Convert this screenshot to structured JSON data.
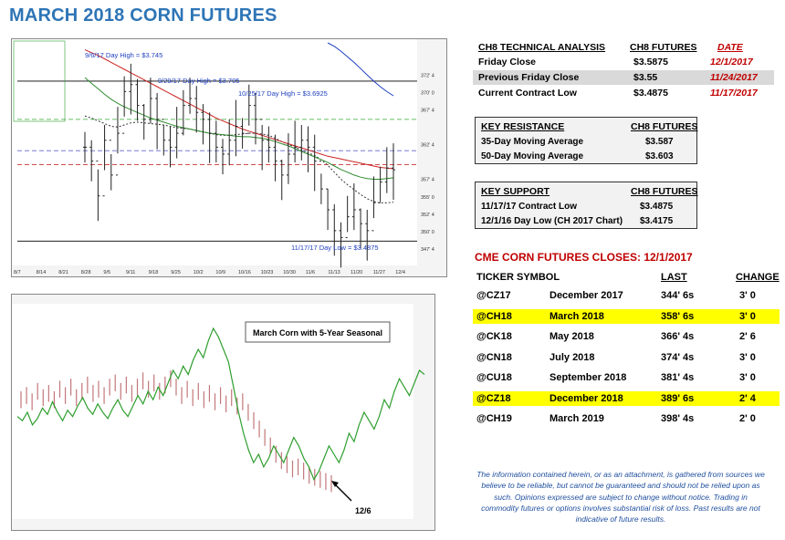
{
  "title": "MARCH 2018 CORN FUTURES",
  "technical": {
    "header": [
      "CH8 TECHNICAL ANALYSIS",
      "CH8 FUTURES",
      "DATE"
    ],
    "rows": [
      {
        "label": "Friday Close",
        "value": "$3.5875",
        "date": "12/1/2017"
      },
      {
        "label": "Previous Friday Close",
        "value": "$3.55",
        "date": "11/24/2017"
      },
      {
        "label": "Current Contract Low",
        "value": "$3.4875",
        "date": "11/17/2017"
      }
    ]
  },
  "resistance": {
    "header": [
      "KEY RESISTANCE",
      "CH8 FUTURES"
    ],
    "rows": [
      {
        "label": "35-Day Moving Average",
        "value": "$3.587"
      },
      {
        "label": "50-Day Moving Average",
        "value": "$3.603"
      }
    ]
  },
  "support": {
    "header": [
      "KEY SUPPORT",
      "CH8 FUTURES"
    ],
    "rows": [
      {
        "label": "11/17/17 Contract Low",
        "value": "$3.4875"
      },
      {
        "label": "12/1/16 Day Low (CH 2017 Chart)",
        "value": "$3.4175"
      }
    ]
  },
  "closes": {
    "title": "CME CORN FUTURES CLOSES:  12/1/2017",
    "header": [
      "TICKER SYMBOL",
      "LAST",
      "CHANGE"
    ],
    "rows": [
      {
        "ticker": "@CZ17",
        "month": "December 2017",
        "last": "344' 6s",
        "change": "3' 0",
        "highlight": false
      },
      {
        "ticker": "@CH18",
        "month": "March 2018",
        "last": "358' 6s",
        "change": "3' 0",
        "highlight": true
      },
      {
        "ticker": "@CK18",
        "month": "May 2018",
        "last": "366' 4s",
        "change": "2' 6",
        "highlight": false
      },
      {
        "ticker": "@CN18",
        "month": "July 2018",
        "last": "374' 4s",
        "change": "3' 0",
        "highlight": false
      },
      {
        "ticker": "@CU18",
        "month": "September 2018",
        "last": "381' 4s",
        "change": "3' 0",
        "highlight": false
      },
      {
        "ticker": "@CZ18",
        "month": "December 2018",
        "last": "389' 6s",
        "change": "2' 4",
        "highlight": true
      },
      {
        "ticker": "@CH19",
        "month": "March 2019",
        "last": "398' 4s",
        "change": "2' 0",
        "highlight": false
      }
    ]
  },
  "disclaimer": "The information contained herein, or as an attachment, is gathered from sources we believe to be reliable, but cannot be guaranteed and should not be relied upon as such. Opinions expressed are subject to change without notice. Trading in commodity futures or options involves substantial risk of loss. Past results are not indicative of future results.",
  "chart_data": [
    {
      "type": "candlestick",
      "annotations": [
        "9/6/17 Day High = $3.745",
        "9/29/17 Day High = $3.705",
        "10/25/17 Day High = $3.6925",
        "11/17/17 Day Low = $3.4875"
      ],
      "x_tick_labels": [
        "8/7",
        "8/14",
        "8/21",
        "8/28",
        "9/5",
        "9/11",
        "9/18",
        "9/25",
        "10/2",
        "10/9",
        "10/16",
        "10/23",
        "10/30",
        "11/6",
        "11/13",
        "11/20",
        "11/27",
        "12/4"
      ],
      "y_tick_labels": [
        "372' 4",
        "370' 0",
        "367' 4",
        "362' 4",
        "357' 4",
        "355' 0",
        "352' 4",
        "350' 0",
        "347' 4"
      ],
      "ylim": [
        345,
        377
      ],
      "series": [
        {
          "kind": "ohlc",
          "close": [
            362,
            360,
            355,
            363,
            358,
            364,
            370,
            371,
            368,
            366,
            369,
            366,
            363,
            362,
            364,
            368,
            369,
            367,
            366,
            364,
            362,
            361,
            363,
            365,
            364,
            368,
            366,
            363,
            362,
            360,
            358,
            361,
            362,
            363,
            362,
            360,
            356,
            353,
            350,
            349,
            352,
            353,
            351,
            350,
            354,
            357,
            359,
            358.75
          ],
          "color": "#222222"
        },
        {
          "kind": "ma_fast",
          "values": [
            366.5,
            366.2,
            365.8,
            365.4,
            365.0,
            364.9,
            365.2,
            365.5,
            365.6,
            365.5,
            365.4,
            365.3,
            365.2,
            365.0,
            364.8,
            364.7,
            364.6,
            364.4,
            364.2,
            364.0,
            363.8,
            363.7,
            363.7,
            363.8,
            363.9,
            364.0,
            364.0,
            363.9,
            363.7,
            363.3,
            362.8,
            362.4,
            362.0,
            361.6,
            361.2,
            360.8,
            360.2,
            359.4,
            358.4,
            357.4,
            356.6,
            355.9,
            355.2,
            354.6,
            354.2,
            354.0,
            354.0,
            354.1
          ],
          "color": "#333333"
        },
        {
          "kind": "ma_green",
          "values": [
            372,
            371.2,
            370.4,
            369.6,
            368.9,
            368.3,
            367.8,
            367.4,
            367.0,
            366.6,
            366.2,
            365.9,
            365.6,
            365.3,
            365.0,
            364.8,
            364.6,
            364.4,
            364.2,
            364.0,
            363.9,
            363.8,
            363.7,
            363.6,
            363.5,
            363.5,
            363.4,
            363.3,
            363.1,
            362.8,
            362.5,
            362.2,
            361.8,
            361.4,
            361.0,
            360.6,
            360.2,
            359.8,
            359.3,
            358.8,
            358.4,
            358.0,
            357.7,
            357.5,
            357.4,
            357.4,
            357.5,
            357.6
          ],
          "color": "#2e8b2e"
        },
        {
          "kind": "ma_red",
          "values": [
            376,
            375.6,
            375.2,
            374.7,
            374.2,
            373.7,
            373.2,
            372.7,
            372.2,
            371.7,
            371.2,
            370.7,
            370.2,
            369.7,
            369.2,
            368.7,
            368.2,
            367.7,
            367.2,
            366.7,
            366.2,
            365.8,
            365.4,
            365.0,
            364.6,
            364.3,
            364.0,
            363.7,
            363.4,
            363.1,
            362.8,
            362.5,
            362.2,
            361.9,
            361.6,
            361.3,
            361.0,
            360.7,
            360.5,
            360.3,
            360.1,
            359.9,
            359.7,
            359.5,
            359.3,
            359.1,
            359.0,
            358.9
          ],
          "color": "#cc2222"
        },
        {
          "kind": "ma_blue",
          "values": [
            null,
            null,
            null,
            null,
            null,
            null,
            null,
            null,
            null,
            null,
            null,
            null,
            null,
            null,
            null,
            null,
            null,
            null,
            null,
            null,
            null,
            null,
            null,
            null,
            null,
            null,
            null,
            null,
            null,
            null,
            null,
            null,
            null,
            null,
            null,
            null,
            null,
            377,
            376.5,
            375.8,
            375.0,
            374.2,
            373.3,
            372.4,
            371.5,
            370.7,
            370.0,
            369.4
          ],
          "color": "#1f3fbf"
        }
      ]
    },
    {
      "type": "line",
      "title": "March Corn with 5-Year Seasonal",
      "annotation": "12/6",
      "series": [
        {
          "name": "seasonal",
          "color": "#2e9e2e",
          "values": [
            48,
            46,
            50,
            44,
            47,
            52,
            49,
            55,
            50,
            46,
            51,
            48,
            53,
            57,
            52,
            49,
            54,
            50,
            47,
            52,
            56,
            51,
            48,
            53,
            58,
            54,
            60,
            56,
            62,
            58,
            64,
            70,
            66,
            72,
            68,
            75,
            80,
            76,
            84,
            90,
            86,
            80,
            74,
            62,
            50,
            40,
            32,
            26,
            30,
            24,
            28,
            34,
            30,
            26,
            32,
            38,
            34,
            28,
            24,
            18,
            22,
            28,
            34,
            30,
            26,
            32,
            40,
            36,
            44,
            50,
            46,
            42,
            48,
            56,
            52,
            60,
            66,
            62,
            58,
            64,
            70,
            68
          ]
        },
        {
          "name": "price",
          "color": "#c2777a",
          "values": [
            56,
            58,
            55,
            60,
            57,
            59,
            56,
            61,
            58,
            62,
            57,
            60,
            63,
            59,
            61,
            58,
            62,
            64,
            60,
            63,
            59,
            62,
            65,
            61,
            64,
            60,
            63,
            66,
            62,
            58,
            61,
            57,
            60,
            56,
            59,
            55,
            58,
            54,
            57,
            53,
            55,
            50,
            46,
            42,
            38,
            34,
            30,
            27,
            25,
            23,
            24,
            22,
            20,
            19,
            18,
            17,
            16
          ]
        }
      ]
    }
  ]
}
